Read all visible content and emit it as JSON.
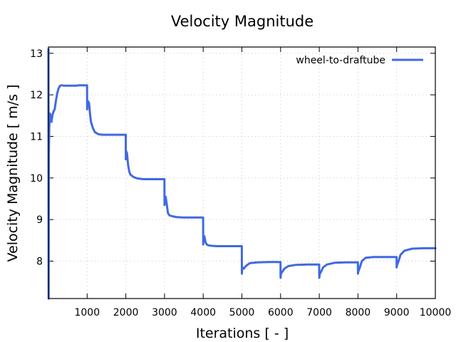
{
  "chart_data": {
    "type": "line",
    "title": "Velocity Magnitude",
    "xlabel": "Iterations [ - ]",
    "ylabel": "Velocity Magnitude [ m/s ]",
    "xlim": [
      0,
      10000
    ],
    "ylim": [
      7.1,
      13.15
    ],
    "xticks": [
      1000,
      2000,
      3000,
      4000,
      5000,
      6000,
      7000,
      8000,
      9000,
      10000
    ],
    "xtick_labels": [
      "1000",
      "2000",
      "3000",
      "4000",
      "5000",
      "6000",
      "7000",
      "8000",
      "9000",
      "10000"
    ],
    "yticks": [
      8,
      9,
      10,
      11,
      12,
      13
    ],
    "ytick_labels": [
      "8",
      "9",
      "10",
      "11",
      "12",
      "13"
    ],
    "grid": true,
    "legend_position": "top-right",
    "series": [
      {
        "name": "wheel-to-draftube",
        "color": "#4169e1",
        "x": [
          0,
          5,
          10,
          20,
          40,
          60,
          80,
          100,
          130,
          160,
          200,
          230,
          260,
          300,
          350,
          400,
          500,
          600,
          700,
          800,
          900,
          998,
          1000,
          1005,
          1020,
          1050,
          1080,
          1100,
          1150,
          1200,
          1300,
          1400,
          1500,
          1700,
          1900,
          1998,
          2000,
          2005,
          2030,
          2060,
          2090,
          2120,
          2200,
          2300,
          2450,
          2600,
          2800,
          2998,
          3000,
          3005,
          3030,
          3060,
          3090,
          3130,
          3200,
          3300,
          3450,
          3600,
          3800,
          3998,
          4000,
          4005,
          4030,
          4060,
          4090,
          4130,
          4200,
          4350,
          4500,
          4700,
          4998,
          5000,
          5010,
          5050,
          5100,
          5200,
          5400,
          5700,
          5998,
          6000,
          6010,
          6050,
          6100,
          6200,
          6400,
          6700,
          6998,
          7000,
          7010,
          7050,
          7100,
          7200,
          7400,
          7700,
          7998,
          8000,
          8010,
          8050,
          8100,
          8200,
          8400,
          8700,
          8998,
          9000,
          9010,
          9050,
          9100,
          9200,
          9400,
          9700,
          10000
        ],
        "y": [
          13.1,
          7.1,
          10.5,
          11.2,
          11.55,
          11.4,
          11.35,
          11.5,
          11.6,
          11.65,
          11.9,
          12.05,
          12.15,
          12.22,
          12.23,
          12.22,
          12.22,
          12.22,
          12.22,
          12.23,
          12.23,
          12.23,
          11.65,
          11.85,
          11.85,
          11.8,
          11.5,
          11.35,
          11.2,
          11.1,
          11.05,
          11.04,
          11.04,
          11.04,
          11.04,
          11.04,
          10.45,
          10.65,
          10.6,
          10.3,
          10.15,
          10.08,
          10.02,
          9.99,
          9.97,
          9.97,
          9.97,
          9.97,
          9.35,
          9.5,
          9.55,
          9.35,
          9.15,
          9.1,
          9.08,
          9.06,
          9.05,
          9.05,
          9.05,
          9.05,
          8.4,
          8.55,
          8.6,
          8.45,
          8.4,
          8.38,
          8.37,
          8.36,
          8.36,
          8.36,
          8.36,
          7.7,
          7.85,
          7.82,
          7.88,
          7.95,
          7.97,
          7.98,
          7.98,
          7.6,
          7.7,
          7.75,
          7.82,
          7.88,
          7.91,
          7.92,
          7.92,
          7.6,
          7.68,
          7.75,
          7.85,
          7.92,
          7.96,
          7.97,
          7.97,
          7.7,
          7.75,
          7.85,
          8.0,
          8.08,
          8.1,
          8.1,
          8.1,
          7.85,
          7.9,
          8.0,
          8.15,
          8.25,
          8.3,
          8.31,
          8.31
        ]
      }
    ]
  }
}
